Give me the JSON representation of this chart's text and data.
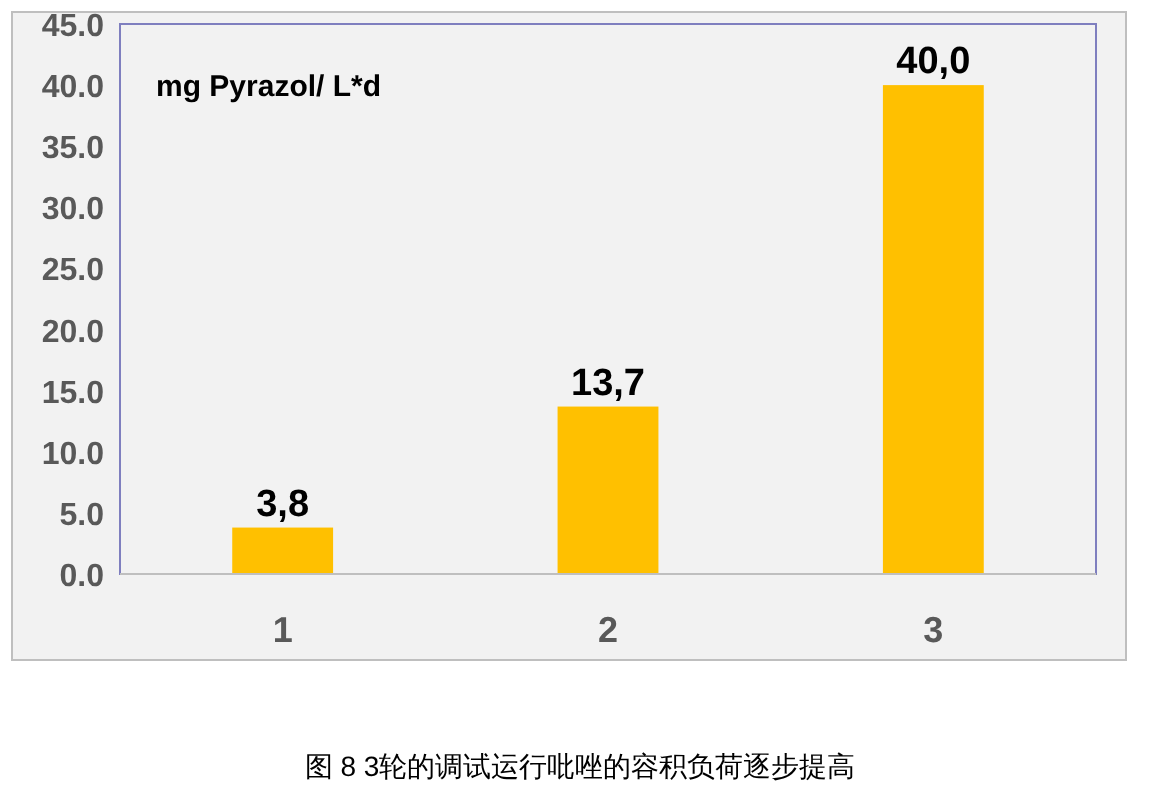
{
  "chart_data": {
    "type": "bar",
    "categories": [
      "1",
      "2",
      "3"
    ],
    "values": [
      3.8,
      13.7,
      40.0
    ],
    "value_labels": [
      "3,8",
      "13,7",
      "40,0"
    ],
    "color": "#ffc000",
    "ylim": [
      0,
      45
    ],
    "yticks": [
      {
        "value": 0,
        "label": "0.0"
      },
      {
        "value": 5,
        "label": "5.0"
      },
      {
        "value": 10,
        "label": "10.0"
      },
      {
        "value": 15,
        "label": "15.0"
      },
      {
        "value": 20,
        "label": "20.0"
      },
      {
        "value": 25,
        "label": "25.0"
      },
      {
        "value": 30,
        "label": "30.0"
      },
      {
        "value": 35,
        "label": "35.0"
      },
      {
        "value": 40,
        "label": "40.0"
      },
      {
        "value": 45,
        "label": "45.0"
      }
    ],
    "grid": false,
    "annotations": [
      "mg Pyrazol/ L*d",
      "图 8  3轮的调试运行吡唑的容积负荷逐步提高"
    ]
  }
}
